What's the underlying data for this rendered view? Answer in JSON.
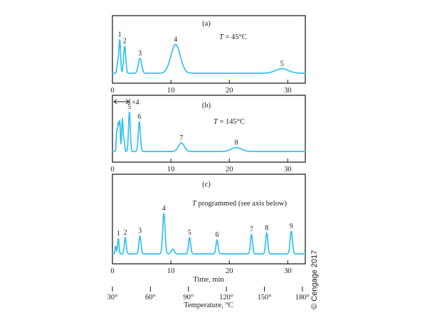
{
  "chart_data": [
    {
      "type": "line",
      "panel_label": "(a)",
      "condition": "T = 45°C",
      "condition_var": "T",
      "condition_rest": " = 45°C",
      "x_ticks": [
        0,
        10,
        20,
        30
      ],
      "xlim": [
        0,
        33
      ],
      "series": [
        {
          "peaks": [
            {
              "label": "",
              "x": 0.9,
              "h": 0.28,
              "w": 0.13
            },
            {
              "label": "1",
              "x": 1.25,
              "h": 0.82,
              "w": 0.14
            },
            {
              "label": "2",
              "x": 2.1,
              "h": 0.66,
              "w": 0.18
            },
            {
              "label": "3",
              "x": 4.7,
              "h": 0.36,
              "w": 0.28
            },
            {
              "label": "4",
              "x": 10.8,
              "h": 0.7,
              "w": 0.8
            },
            {
              "label": "5",
              "x": 29.0,
              "h": 0.11,
              "w": 1.1
            }
          ]
        }
      ]
    },
    {
      "type": "line",
      "panel_label": "(b)",
      "condition": "T = 145°C",
      "condition_var": "T",
      "condition_rest": " = 145°C",
      "attenuation_label": "×4",
      "x_ticks": [
        0,
        10,
        20,
        30
      ],
      "xlim": [
        0,
        33
      ],
      "series": [
        {
          "peaks": [
            {
              "label": "",
              "x": 0.75,
              "h": 0.42,
              "w": 0.1
            },
            {
              "label": "",
              "x": 1.0,
              "h": 0.55,
              "w": 0.1
            },
            {
              "label": "",
              "x": 1.25,
              "h": 0.6,
              "w": 0.1
            },
            {
              "label": "",
              "x": 1.7,
              "h": 0.66,
              "w": 0.12
            },
            {
              "label": "",
              "x": 2.0,
              "h": 0.22,
              "w": 0.1
            },
            {
              "label": "5",
              "x": 2.9,
              "h": 0.8,
              "w": 0.15
            },
            {
              "label": "6",
              "x": 4.6,
              "h": 0.6,
              "w": 0.18
            },
            {
              "label": "7",
              "x": 11.8,
              "h": 0.17,
              "w": 0.5
            },
            {
              "label": "8",
              "x": 21.2,
              "h": 0.08,
              "w": 0.85
            }
          ]
        }
      ]
    },
    {
      "type": "line",
      "panel_label": "(c)",
      "condition": "T programmed (see axis below)",
      "condition_var": "T",
      "condition_rest": " programmed (see axis below)",
      "xlabel": "Time, min",
      "x_ticks": [
        0,
        10,
        20,
        30
      ],
      "xlim": [
        0,
        33
      ],
      "secondary_axis": {
        "label": "Temperature, °C",
        "ticks": [
          {
            "label": "30°",
            "time": 0
          },
          {
            "label": "60°",
            "time": 6.5
          },
          {
            "label": "90°",
            "time": 13
          },
          {
            "label": "120°",
            "time": 19.5
          },
          {
            "label": "150°",
            "time": 26
          },
          {
            "label": "180°",
            "time": 32.5
          }
        ]
      },
      "series": [
        {
          "peaks": [
            {
              "label": "",
              "x": 0.55,
              "h": 0.1,
              "w": 0.1
            },
            {
              "label": "1",
              "x": 1.0,
              "h": 0.2,
              "w": 0.12
            },
            {
              "label": "2",
              "x": 2.2,
              "h": 0.21,
              "w": 0.16
            },
            {
              "label": "3",
              "x": 4.7,
              "h": 0.23,
              "w": 0.18
            },
            {
              "label": "4",
              "x": 8.8,
              "h": 0.52,
              "w": 0.2
            },
            {
              "label": "",
              "x": 10.3,
              "h": 0.06,
              "w": 0.25
            },
            {
              "label": "5",
              "x": 13.2,
              "h": 0.21,
              "w": 0.18
            },
            {
              "label": "6",
              "x": 17.9,
              "h": 0.18,
              "w": 0.18
            },
            {
              "label": "7",
              "x": 23.8,
              "h": 0.25,
              "w": 0.18
            },
            {
              "label": "8",
              "x": 26.4,
              "h": 0.27,
              "w": 0.18
            },
            {
              "label": "9",
              "x": 30.6,
              "h": 0.29,
              "w": 0.2
            }
          ]
        }
      ]
    }
  ],
  "credit": "© Cengage 2017",
  "colors": {
    "trace": "#33c1ef",
    "axes": "#111111"
  }
}
